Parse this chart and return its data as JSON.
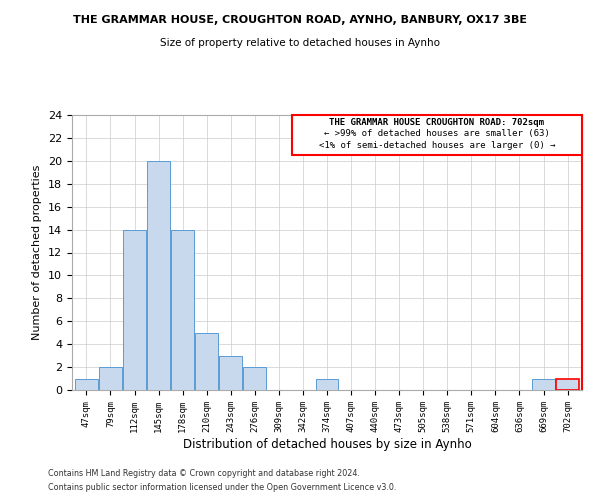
{
  "title_line1": "THE GRAMMAR HOUSE, CROUGHTON ROAD, AYNHO, BANBURY, OX17 3BE",
  "title_line2": "Size of property relative to detached houses in Aynho",
  "xlabel": "Distribution of detached houses by size in Aynho",
  "ylabel": "Number of detached properties",
  "bin_labels": [
    "47sqm",
    "79sqm",
    "112sqm",
    "145sqm",
    "178sqm",
    "210sqm",
    "243sqm",
    "276sqm",
    "309sqm",
    "342sqm",
    "374sqm",
    "407sqm",
    "440sqm",
    "473sqm",
    "505sqm",
    "538sqm",
    "571sqm",
    "604sqm",
    "636sqm",
    "669sqm",
    "702sqm"
  ],
  "bar_heights": [
    1,
    2,
    14,
    20,
    14,
    5,
    3,
    2,
    0,
    0,
    1,
    0,
    0,
    0,
    0,
    0,
    0,
    0,
    0,
    1,
    1
  ],
  "bar_color": "#c9d9ed",
  "bar_edge_color": "#5b9bd5",
  "highlight_bar_index": 20,
  "red_box_edge_color": "#ff0000",
  "ylim": [
    0,
    24
  ],
  "yticks": [
    0,
    2,
    4,
    6,
    8,
    10,
    12,
    14,
    16,
    18,
    20,
    22,
    24
  ],
  "annotation_title": "THE GRAMMAR HOUSE CROUGHTON ROAD: 702sqm",
  "annotation_line1": "← >99% of detached houses are smaller (63)",
  "annotation_line2": "<1% of semi-detached houses are larger (0) →",
  "footer_line1": "Contains HM Land Registry data © Crown copyright and database right 2024.",
  "footer_line2": "Contains public sector information licensed under the Open Government Licence v3.0.",
  "grid_color": "#cccccc",
  "background_color": "#ffffff"
}
